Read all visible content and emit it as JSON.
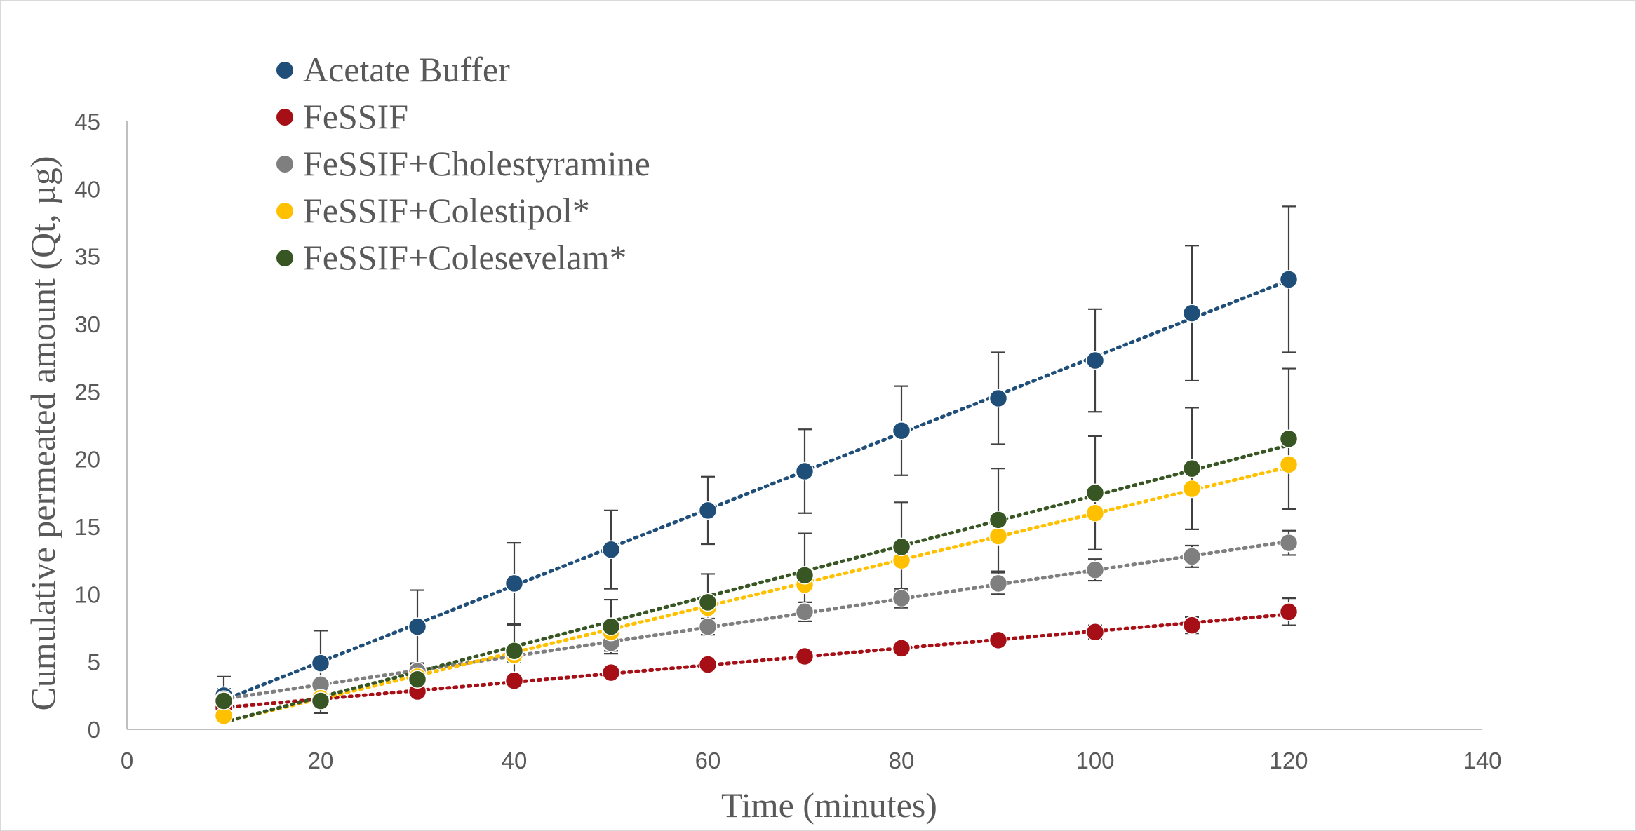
{
  "chart_data": {
    "type": "scatter",
    "title": "",
    "xlabel": "Time (minutes)",
    "ylabel": "Cumulative permeated amount (Qt, µg)",
    "xlim": [
      0,
      140
    ],
    "ylim": [
      0,
      45
    ],
    "xticks": [
      0,
      20,
      40,
      60,
      80,
      100,
      120,
      140
    ],
    "yticks": [
      0,
      5,
      10,
      15,
      20,
      25,
      30,
      35,
      40,
      45
    ],
    "grid": false,
    "legend_position": "top-left",
    "trendlines": "linear, dotted",
    "x": [
      10,
      20,
      30,
      40,
      50,
      60,
      70,
      80,
      90,
      100,
      110,
      120
    ],
    "series": [
      {
        "name": "Acetate Buffer",
        "color": "#1f4e79",
        "values": [
          2.5,
          4.9,
          7.6,
          10.8,
          13.3,
          16.2,
          19.1,
          22.1,
          24.5,
          27.3,
          30.8,
          33.3
        ],
        "errors": [
          1.4,
          2.4,
          2.7,
          3.0,
          2.9,
          2.5,
          3.1,
          3.3,
          3.4,
          3.8,
          5.0,
          5.4
        ]
      },
      {
        "name": "FeSSIF",
        "color": "#a50f15",
        "values": [
          1.6,
          2.2,
          2.8,
          3.6,
          4.2,
          4.8,
          5.4,
          6.0,
          6.6,
          7.2,
          7.7,
          8.7
        ],
        "errors": [
          0.2,
          0.3,
          0.3,
          0.3,
          0.4,
          0.4,
          0.4,
          0.4,
          0.4,
          0.5,
          0.6,
          1.0
        ]
      },
      {
        "name": "FeSSIF+Cholestyramine",
        "color": "#7f7f7f",
        "values": [
          2.2,
          3.3,
          4.3,
          5.5,
          6.4,
          7.6,
          8.7,
          9.7,
          10.8,
          11.8,
          12.8,
          13.8
        ],
        "errors": [
          0.3,
          0.4,
          0.5,
          0.5,
          0.6,
          0.6,
          0.7,
          0.7,
          0.8,
          0.8,
          0.8,
          0.9
        ]
      },
      {
        "name": "FeSSIF+Colestipol*",
        "color": "#ffc000",
        "values": [
          1.0,
          2.3,
          3.9,
          5.5,
          7.2,
          9.0,
          10.7,
          12.5,
          14.3,
          16.0,
          17.8,
          19.6
        ],
        "errors": [
          0.0,
          0.0,
          0.0,
          0.0,
          0.0,
          0.0,
          0.0,
          0.0,
          0.0,
          0.0,
          0.0,
          0.0
        ]
      },
      {
        "name": "FeSSIF+Colesevelam*",
        "color": "#375623",
        "values": [
          2.1,
          2.1,
          3.7,
          5.8,
          7.6,
          9.4,
          11.4,
          13.5,
          15.5,
          17.5,
          19.3,
          21.5
        ],
        "errors": [
          0.9,
          0.9,
          0.9,
          1.9,
          2.0,
          2.1,
          3.1,
          3.3,
          3.8,
          4.2,
          4.5,
          5.2
        ]
      }
    ]
  }
}
